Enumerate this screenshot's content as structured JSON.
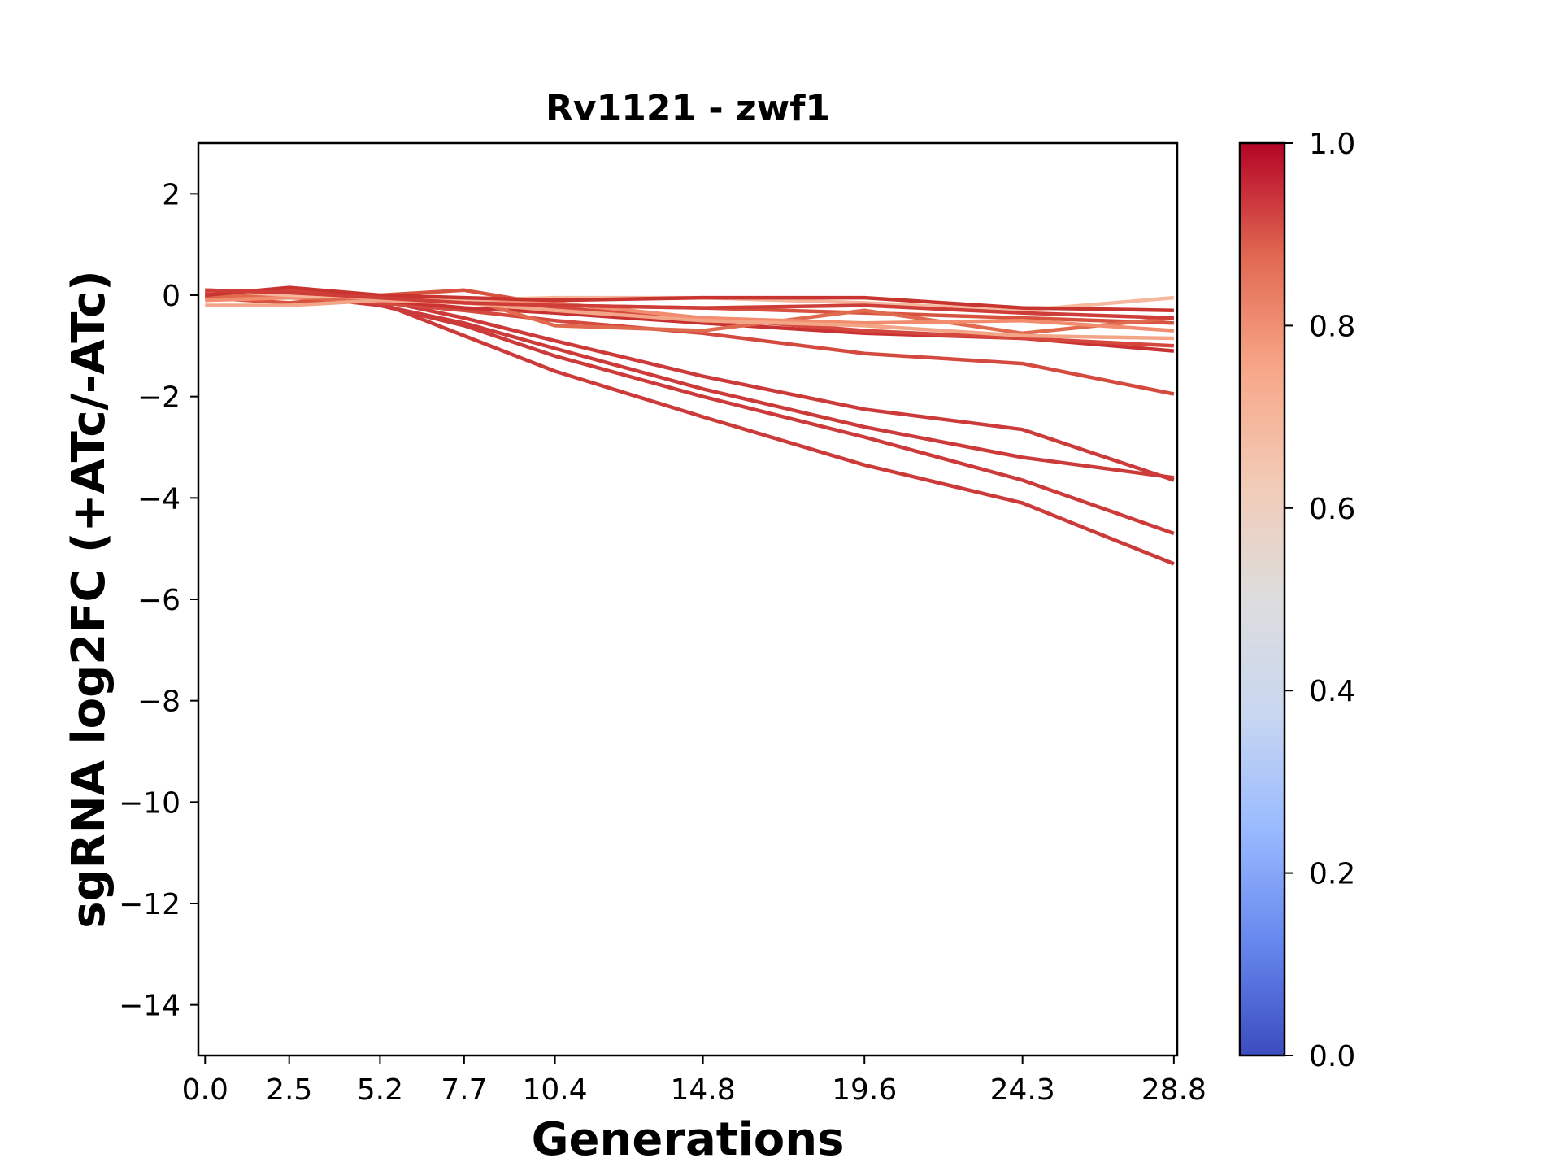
{
  "chart_data": {
    "type": "line",
    "title": "Rv1121 - zwf1",
    "xlabel": "Generations",
    "ylabel": "sgRNA log2FC (+ATc/-ATc)",
    "x": [
      0.0,
      2.5,
      5.2,
      7.7,
      10.4,
      14.8,
      19.6,
      24.3,
      28.8
    ],
    "x_tick_labels": [
      "0.0",
      "2.5",
      "5.2",
      "7.7",
      "10.4",
      "14.8",
      "19.6",
      "24.3",
      "28.8"
    ],
    "xlim": [
      -0.2,
      28.9
    ],
    "ylim": [
      -15,
      3
    ],
    "y_ticks": [
      2,
      0,
      -2,
      -4,
      -6,
      -8,
      -10,
      -12,
      -14
    ],
    "y_tick_labels": [
      "2",
      "0",
      "−2",
      "−4",
      "−6",
      "−8",
      "−10",
      "−12",
      "−14"
    ],
    "grid": false,
    "colormap": "coolwarm",
    "colorbar": {
      "range": [
        0.0,
        1.0
      ],
      "ticks": [
        0.0,
        0.2,
        0.4,
        0.6,
        0.8,
        1.0
      ],
      "tick_labels": [
        "0.0",
        "0.2",
        "0.4",
        "0.6",
        "0.8",
        "1.0"
      ],
      "stops": [
        "#3b4cc0",
        "#6788ee",
        "#9abbff",
        "#c9d7f0",
        "#dddddd",
        "#f2cbb7",
        "#f7a889",
        "#e26952",
        "#b40426"
      ]
    },
    "series": [
      {
        "color": "#cc3a3a",
        "values": [
          0.05,
          0.0,
          -0.15,
          -0.8,
          -1.5,
          -2.4,
          -3.35,
          -4.1,
          -5.3
        ]
      },
      {
        "color": "#cc3a3a",
        "values": [
          0.1,
          0.05,
          -0.2,
          -0.6,
          -1.2,
          -2.0,
          -2.8,
          -3.65,
          -4.7
        ]
      },
      {
        "color": "#cc3a3a",
        "values": [
          0.0,
          0.0,
          -0.2,
          -0.55,
          -1.05,
          -1.85,
          -2.6,
          -3.2,
          -3.6
        ]
      },
      {
        "color": "#cc3a3a",
        "values": [
          0.05,
          0.0,
          -0.1,
          -0.45,
          -0.9,
          -1.6,
          -2.25,
          -2.65,
          -3.65
        ]
      },
      {
        "color": "#d44a3f",
        "values": [
          0.0,
          0.0,
          -0.15,
          -0.3,
          -0.5,
          -0.75,
          -1.15,
          -1.35,
          -1.95
        ]
      },
      {
        "color": "#c93232",
        "values": [
          -0.05,
          0.0,
          -0.1,
          -0.25,
          -0.35,
          -0.55,
          -0.75,
          -0.85,
          -1.1
        ]
      },
      {
        "color": "#d5463d",
        "values": [
          0.05,
          0.1,
          -0.05,
          -0.15,
          -0.25,
          -0.45,
          -0.7,
          -0.85,
          -1.0
        ]
      },
      {
        "color": "#d8533f",
        "values": [
          -0.05,
          -0.15,
          0.0,
          0.1,
          -0.2,
          -0.25,
          -0.35,
          -0.45,
          -0.55
        ]
      },
      {
        "color": "#e06a4e",
        "values": [
          0.0,
          -0.05,
          -0.1,
          -0.05,
          -0.6,
          -0.7,
          -0.3,
          -0.75,
          -0.45
        ]
      },
      {
        "color": "#f28c6e",
        "values": [
          -0.1,
          -0.05,
          0.0,
          -0.1,
          -0.15,
          -0.45,
          -0.55,
          -0.5,
          -0.7
        ]
      },
      {
        "color": "#f3a587",
        "values": [
          -0.2,
          -0.2,
          -0.1,
          -0.15,
          -0.3,
          -0.5,
          -0.6,
          -0.8,
          -0.85
        ]
      },
      {
        "color": "#f5b89e",
        "values": [
          0.1,
          0.0,
          -0.05,
          -0.1,
          -0.05,
          -0.05,
          -0.15,
          -0.3,
          -0.05
        ]
      },
      {
        "color": "#c83531",
        "values": [
          0.0,
          0.15,
          0.0,
          -0.05,
          -0.1,
          -0.05,
          -0.05,
          -0.25,
          -0.3
        ]
      },
      {
        "color": "#cf3d38",
        "values": [
          0.1,
          0.05,
          -0.05,
          -0.15,
          -0.2,
          -0.25,
          -0.2,
          -0.35,
          -0.45
        ]
      }
    ]
  }
}
